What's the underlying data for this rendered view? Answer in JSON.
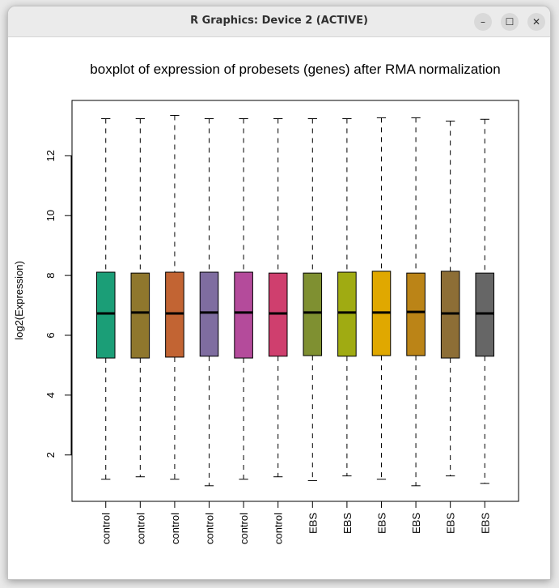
{
  "window": {
    "title": "R Graphics: Device 2 (ACTIVE)",
    "buttons": {
      "minimize": "–",
      "maximize": "☐",
      "close": "✕"
    }
  },
  "chart_data": {
    "type": "boxplot",
    "title": "boxplot of expression of probesets (genes) after RMA normalization",
    "xlabel": "",
    "ylabel": "log2(Expression)",
    "ylim": [
      0.45,
      13.85
    ],
    "yticks": [
      2,
      4,
      6,
      8,
      10,
      12
    ],
    "grid": false,
    "legend": "none",
    "categories": [
      "control",
      "control",
      "control",
      "control",
      "control",
      "control",
      "EBS",
      "EBS",
      "EBS",
      "EBS",
      "EBS",
      "EBS"
    ],
    "colors": [
      "#1b9e77",
      "#8f772d",
      "#c26433",
      "#7f6da0",
      "#b44b9b",
      "#cf3f6e",
      "#7f9031",
      "#a0ab12",
      "#e0a800",
      "#bb8417",
      "#8d6e36",
      "#666666"
    ],
    "boxes": [
      {
        "whisker_low": 1.19,
        "q1": 5.24,
        "median": 6.73,
        "q3": 8.11,
        "whisker_high": 13.24
      },
      {
        "whisker_low": 1.27,
        "q1": 5.24,
        "median": 6.76,
        "q3": 8.08,
        "whisker_high": 13.24
      },
      {
        "whisker_low": 1.19,
        "q1": 5.27,
        "median": 6.73,
        "q3": 8.11,
        "whisker_high": 13.35
      },
      {
        "whisker_low": 0.97,
        "q1": 5.3,
        "median": 6.76,
        "q3": 8.11,
        "whisker_high": 13.24
      },
      {
        "whisker_low": 1.19,
        "q1": 5.24,
        "median": 6.76,
        "q3": 8.11,
        "whisker_high": 13.24
      },
      {
        "whisker_low": 1.27,
        "q1": 5.3,
        "median": 6.73,
        "q3": 8.08,
        "whisker_high": 13.24
      },
      {
        "whisker_low": 1.14,
        "q1": 5.32,
        "median": 6.76,
        "q3": 8.08,
        "whisker_high": 13.24
      },
      {
        "whisker_low": 1.3,
        "q1": 5.3,
        "median": 6.76,
        "q3": 8.11,
        "whisker_high": 13.24
      },
      {
        "whisker_low": 1.19,
        "q1": 5.32,
        "median": 6.76,
        "q3": 8.14,
        "whisker_high": 13.27
      },
      {
        "whisker_low": 0.97,
        "q1": 5.32,
        "median": 6.78,
        "q3": 8.08,
        "whisker_high": 13.27
      },
      {
        "whisker_low": 1.3,
        "q1": 5.24,
        "median": 6.73,
        "q3": 8.14,
        "whisker_high": 13.16
      },
      {
        "whisker_low": 1.05,
        "q1": 5.3,
        "median": 6.73,
        "q3": 8.08,
        "whisker_high": 13.22
      }
    ]
  }
}
